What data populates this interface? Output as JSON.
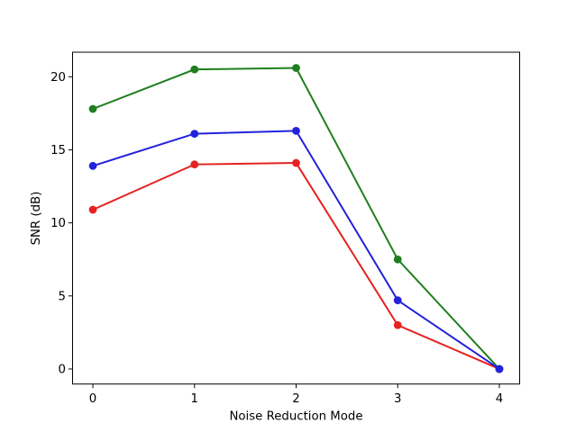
{
  "chart_data": {
    "type": "line",
    "title": "",
    "xlabel": "Noise Reduction Mode",
    "ylabel": "SNR (dB)",
    "x": [
      0,
      1,
      2,
      3,
      4
    ],
    "xticks": [
      0,
      1,
      2,
      3,
      4
    ],
    "yticks": [
      0,
      5,
      10,
      15,
      20
    ],
    "xlim": [
      -0.2,
      4.2
    ],
    "ylim": [
      -1.03,
      21.68
    ],
    "grid": false,
    "legend": "none",
    "marker": "circle",
    "series": [
      {
        "name": "red-series",
        "color": "#e62222",
        "values": [
          10.9,
          14.0,
          14.1,
          3.0,
          0.0
        ]
      },
      {
        "name": "green-series",
        "color": "#1f7f1f",
        "values": [
          17.8,
          20.5,
          20.6,
          7.5,
          0.0
        ]
      },
      {
        "name": "blue-series",
        "color": "#2222dd",
        "values": [
          13.9,
          16.1,
          16.3,
          4.7,
          0.0
        ]
      }
    ],
    "axis_color": "#000000",
    "background": "#ffffff"
  }
}
